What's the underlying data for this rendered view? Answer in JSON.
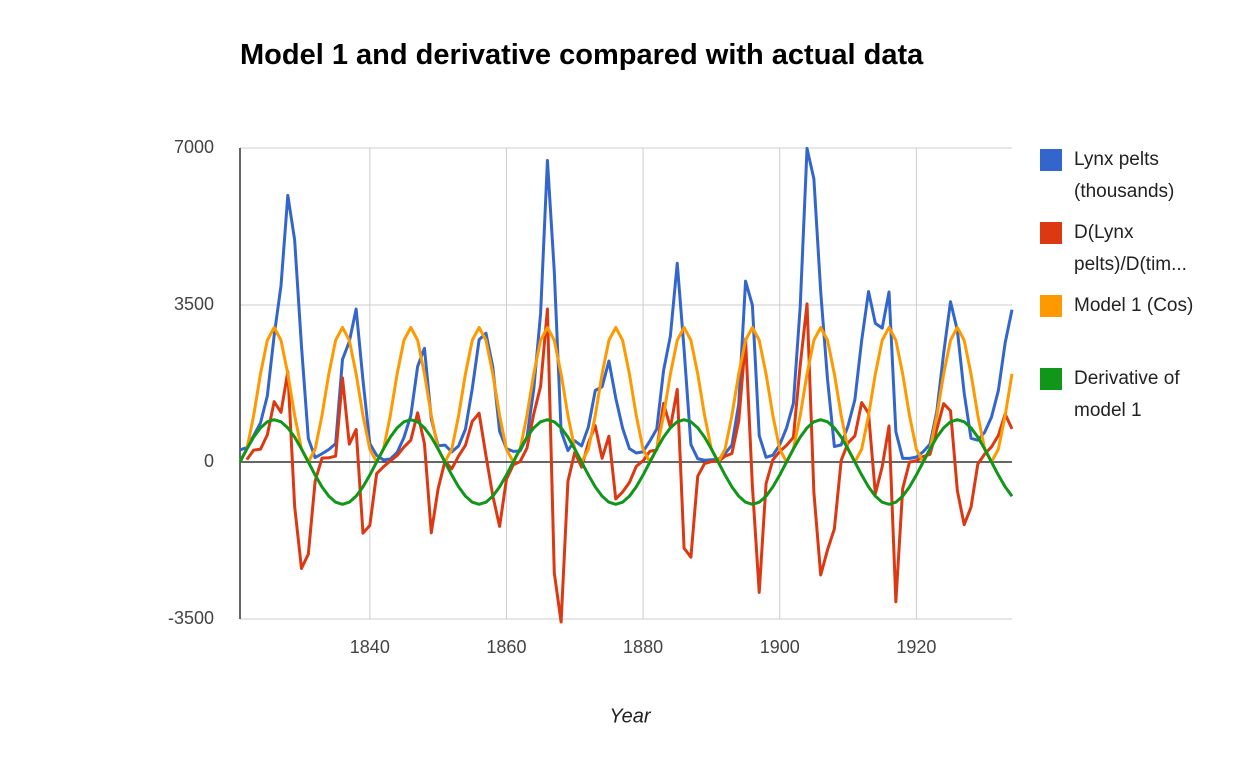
{
  "chart_data": {
    "type": "line",
    "title": "Model 1 and derivative compared with actual data",
    "x_label": "Year",
    "x": [
      1821,
      1822,
      1823,
      1824,
      1825,
      1826,
      1827,
      1828,
      1829,
      1830,
      1831,
      1832,
      1833,
      1834,
      1835,
      1836,
      1837,
      1838,
      1839,
      1840,
      1841,
      1842,
      1843,
      1844,
      1845,
      1846,
      1847,
      1848,
      1849,
      1850,
      1851,
      1852,
      1853,
      1854,
      1855,
      1856,
      1857,
      1858,
      1859,
      1860,
      1861,
      1862,
      1863,
      1864,
      1865,
      1866,
      1867,
      1868,
      1869,
      1870,
      1871,
      1872,
      1873,
      1874,
      1875,
      1876,
      1877,
      1878,
      1879,
      1880,
      1881,
      1882,
      1883,
      1884,
      1885,
      1886,
      1887,
      1888,
      1889,
      1890,
      1891,
      1892,
      1893,
      1894,
      1895,
      1896,
      1897,
      1898,
      1899,
      1900,
      1901,
      1902,
      1903,
      1904,
      1905,
      1906,
      1907,
      1908,
      1909,
      1910,
      1911,
      1912,
      1913,
      1914,
      1915,
      1916,
      1917,
      1918,
      1919,
      1920,
      1921,
      1922,
      1923,
      1924,
      1925,
      1926,
      1927,
      1928,
      1929,
      1930,
      1931,
      1932,
      1933,
      1934
    ],
    "series": [
      {
        "name": "Lynx pelts (thousands)",
        "color": "#3366cc",
        "values": [
          269,
          321,
          585,
          871,
          1475,
          2821,
          3928,
          5943,
          4950,
          2577,
          523,
          98,
          184,
          279,
          409,
          2285,
          2685,
          3409,
          1824,
          409,
          151,
          45,
          68,
          213,
          546,
          1033,
          2129,
          2536,
          957,
          361,
          377,
          225,
          360,
          731,
          1638,
          2725,
          2871,
          2119,
          684,
          299,
          236,
          245,
          552,
          1623,
          3311,
          6721,
          4254,
          687,
          255,
          473,
          358,
          784,
          1594,
          1676,
          2251,
          1426,
          756,
          299,
          201,
          229,
          469,
          736,
          2042,
          2811,
          4431,
          2511,
          389,
          73,
          39,
          49,
          59,
          188,
          377,
          1292,
          4031,
          3495,
          587,
          105,
          153,
          387,
          758,
          1307,
          3465,
          6991,
          6313,
          3794,
          1836,
          345,
          382,
          808,
          1388,
          2713,
          3800,
          3091,
          2985,
          3790,
          674,
          81,
          80,
          108,
          229,
          399,
          1132,
          2432,
          3574,
          2935,
          1537,
          529,
          485,
          662,
          1000,
          1590,
          2657,
          3396
        ]
      },
      {
        "name": "D(Lynx pelts)/D(tim...",
        "color": "#dc3912",
        "values": [
          null,
          52,
          264,
          286,
          604,
          1346,
          1107,
          2015,
          -993,
          -2373,
          -2054,
          -425,
          86,
          95,
          130,
          1876,
          400,
          724,
          -1585,
          -1415,
          -258,
          -106,
          23,
          145,
          333,
          487,
          1096,
          407,
          -1579,
          -596,
          16,
          -152,
          135,
          371,
          907,
          1087,
          146,
          -752,
          -1435,
          -385,
          -63,
          9,
          307,
          1071,
          1688,
          3410,
          -2467,
          -3567,
          -432,
          218,
          -115,
          426,
          810,
          82,
          575,
          -825,
          -670,
          -457,
          -98,
          28,
          240,
          267,
          1306,
          769,
          1620,
          -1920,
          -2122,
          -316,
          -34,
          10,
          10,
          129,
          189,
          915,
          2739,
          -536,
          -2908,
          -482,
          48,
          234,
          371,
          549,
          2158,
          3526,
          -678,
          -2519,
          -1958,
          -1491,
          37,
          426,
          580,
          1325,
          1087,
          -709,
          -106,
          805,
          -3116,
          -593,
          -1,
          28,
          121,
          170,
          733,
          1300,
          1142,
          -639,
          -1398,
          -1008,
          -44,
          177,
          338,
          590,
          1067,
          739
        ]
      },
      {
        "name": "Model 1 (Cos)",
        "color": "#ff9900",
        "values": [
          0,
          287,
          1036,
          1964,
          2714,
          3000,
          2714,
          1964,
          1036,
          287,
          0,
          287,
          1036,
          1964,
          2714,
          3000,
          2714,
          1964,
          1036,
          287,
          0,
          287,
          1036,
          1964,
          2714,
          3000,
          2714,
          1964,
          1036,
          287,
          0,
          287,
          1036,
          1964,
          2714,
          3000,
          2714,
          1964,
          1036,
          287,
          0,
          287,
          1036,
          1964,
          2714,
          3000,
          2714,
          1964,
          1036,
          287,
          0,
          287,
          1036,
          1964,
          2714,
          3000,
          2714,
          1964,
          1036,
          287,
          0,
          287,
          1036,
          1964,
          2714,
          3000,
          2714,
          1964,
          1036,
          287,
          0,
          287,
          1036,
          1964,
          2714,
          3000,
          2714,
          1964,
          1036,
          287,
          0,
          287,
          1036,
          1964,
          2714,
          3000,
          2714,
          1964,
          1036,
          287,
          0,
          287,
          1036,
          1964,
          2714,
          3000,
          2714,
          1964,
          1036,
          287,
          0,
          287,
          1036,
          1964,
          2714,
          3000,
          2714,
          1964,
          1036,
          287,
          0,
          287,
          1036,
          1964
        ]
      },
      {
        "name": "Derivative of model 1",
        "color": "#109618",
        "values": [
          0,
          291,
          554,
          762,
          896,
          942,
          896,
          762,
          554,
          291,
          0,
          -291,
          -554,
          -762,
          -896,
          -942,
          -896,
          -762,
          -554,
          -291,
          0,
          291,
          554,
          762,
          896,
          942,
          896,
          762,
          554,
          291,
          0,
          -291,
          -554,
          -762,
          -896,
          -942,
          -896,
          -762,
          -554,
          -291,
          0,
          291,
          554,
          762,
          896,
          942,
          896,
          762,
          554,
          291,
          0,
          -291,
          -554,
          -762,
          -896,
          -942,
          -896,
          -762,
          -554,
          -291,
          0,
          291,
          554,
          762,
          896,
          942,
          896,
          762,
          554,
          291,
          0,
          -291,
          -554,
          -762,
          -896,
          -942,
          -896,
          -762,
          -554,
          -291,
          0,
          291,
          554,
          762,
          896,
          942,
          896,
          762,
          554,
          291,
          0,
          -291,
          -554,
          -762,
          -896,
          -942,
          -896,
          -762,
          -554,
          -291,
          0,
          291,
          554,
          762,
          896,
          942,
          896,
          762,
          554,
          291,
          0,
          -291,
          -554,
          -762
        ]
      }
    ],
    "xlim": [
      1821,
      1934
    ],
    "xticks": [
      1840,
      1860,
      1880,
      1900,
      1920
    ],
    "ylim": [
      -3500,
      7000
    ],
    "yticks": [
      -3500,
      0,
      3500,
      7000
    ],
    "grid": true,
    "legend": "right"
  }
}
